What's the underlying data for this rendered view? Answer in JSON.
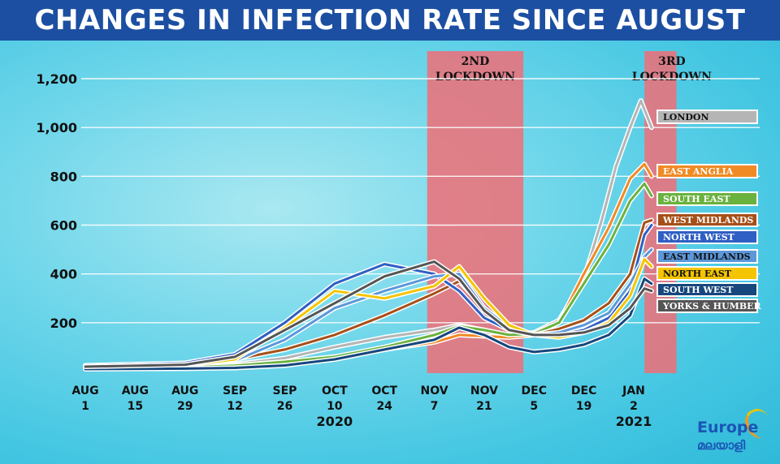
{
  "title": "CHANGES IN INFECTION RATE SINCE AUGUST",
  "colors": {
    "title_bg": "#1c4fa2",
    "shade": "#f06e77",
    "grid": "#ffffff"
  },
  "logo": {
    "word": "Europe",
    "sub": "മലയാളി",
    "icon": "swoosh-icon"
  },
  "chart_data": {
    "type": "line",
    "title": "CHANGES IN INFECTION RATE SINCE AUGUST",
    "xlabel": "",
    "ylabel": "",
    "x_start": "2020-08-01",
    "x_ticks": [
      {
        "date": "2020-08-01",
        "l1": "AUG",
        "l2": "1"
      },
      {
        "date": "2020-08-15",
        "l1": "AUG",
        "l2": "15"
      },
      {
        "date": "2020-08-29",
        "l1": "AUG",
        "l2": "29"
      },
      {
        "date": "2020-09-12",
        "l1": "SEP",
        "l2": "12"
      },
      {
        "date": "2020-09-26",
        "l1": "SEP",
        "l2": "26"
      },
      {
        "date": "2020-10-10",
        "l1": "OCT",
        "l2": "10"
      },
      {
        "date": "2020-10-24",
        "l1": "OCT",
        "l2": "24"
      },
      {
        "date": "2020-11-07",
        "l1": "NOV",
        "l2": "7"
      },
      {
        "date": "2020-11-21",
        "l1": "NOV",
        "l2": "21"
      },
      {
        "date": "2020-12-05",
        "l1": "DEC",
        "l2": "5"
      },
      {
        "date": "2020-12-19",
        "l1": "DEC",
        "l2": "19"
      },
      {
        "date": "2021-01-02",
        "l1": "JAN",
        "l2": "2"
      }
    ],
    "year_labels": [
      {
        "text": "2020",
        "date": "2020-10-10"
      },
      {
        "text": "2021",
        "date": "2021-01-02"
      }
    ],
    "y_ticks": [
      200,
      400,
      600,
      800,
      1000,
      1200
    ],
    "y_tick_labels": [
      "200",
      "400",
      "600",
      "800",
      "1,000",
      "1,200"
    ],
    "ylim": [
      0,
      1200
    ],
    "grid": true,
    "shaded_periods": [
      {
        "label1": "2ND",
        "label2": "LOCKDOWN",
        "start": "2020-11-05",
        "end": "2020-12-02"
      },
      {
        "label1": "3RD",
        "label2": "LOCKDOWN",
        "start": "2021-01-05",
        "end": "2021-01-14"
      }
    ],
    "series": [
      {
        "name": "LONDON",
        "color": "#b5b5b5",
        "text_color": "#111111",
        "points": [
          [
            "2020-08-01",
            20
          ],
          [
            "2020-08-29",
            22
          ],
          [
            "2020-09-12",
            30
          ],
          [
            "2020-09-26",
            55
          ],
          [
            "2020-10-10",
            100
          ],
          [
            "2020-10-24",
            140
          ],
          [
            "2020-11-07",
            170
          ],
          [
            "2020-11-14",
            190
          ],
          [
            "2020-11-21",
            170
          ],
          [
            "2020-11-28",
            150
          ],
          [
            "2020-12-05",
            160
          ],
          [
            "2020-12-12",
            210
          ],
          [
            "2020-12-19",
            380
          ],
          [
            "2020-12-24",
            620
          ],
          [
            "2020-12-28",
            840
          ],
          [
            "2021-01-01",
            1000
          ],
          [
            "2021-01-04",
            1110
          ],
          [
            "2021-01-07",
            1000
          ]
        ]
      },
      {
        "name": "EAST ANGLIA",
        "color": "#f08a24",
        "text_color": "#ffffff",
        "points": [
          [
            "2020-08-01",
            15
          ],
          [
            "2020-08-29",
            18
          ],
          [
            "2020-09-12",
            25
          ],
          [
            "2020-09-26",
            40
          ],
          [
            "2020-10-10",
            60
          ],
          [
            "2020-10-24",
            90
          ],
          [
            "2020-11-07",
            120
          ],
          [
            "2020-11-14",
            150
          ],
          [
            "2020-11-21",
            145
          ],
          [
            "2020-11-28",
            140
          ],
          [
            "2020-12-05",
            150
          ],
          [
            "2020-12-12",
            200
          ],
          [
            "2020-12-19",
            400
          ],
          [
            "2020-12-26",
            590
          ],
          [
            "2021-01-01",
            790
          ],
          [
            "2021-01-05",
            850
          ],
          [
            "2021-01-07",
            800
          ]
        ]
      },
      {
        "name": "SOUTH EAST",
        "color": "#6ab23e",
        "text_color": "#ffffff",
        "points": [
          [
            "2020-08-01",
            14
          ],
          [
            "2020-08-29",
            17
          ],
          [
            "2020-09-12",
            24
          ],
          [
            "2020-09-26",
            40
          ],
          [
            "2020-10-10",
            60
          ],
          [
            "2020-10-24",
            100
          ],
          [
            "2020-11-07",
            150
          ],
          [
            "2020-11-14",
            185
          ],
          [
            "2020-11-21",
            170
          ],
          [
            "2020-11-28",
            150
          ],
          [
            "2020-12-05",
            155
          ],
          [
            "2020-12-12",
            200
          ],
          [
            "2020-12-19",
            360
          ],
          [
            "2020-12-26",
            520
          ],
          [
            "2021-01-01",
            700
          ],
          [
            "2021-01-05",
            770
          ],
          [
            "2021-01-07",
            720
          ]
        ]
      },
      {
        "name": "WEST MIDLANDS",
        "color": "#a64f18",
        "text_color": "#ffffff",
        "points": [
          [
            "2020-08-01",
            22
          ],
          [
            "2020-08-29",
            30
          ],
          [
            "2020-09-12",
            50
          ],
          [
            "2020-09-26",
            90
          ],
          [
            "2020-10-10",
            150
          ],
          [
            "2020-10-24",
            230
          ],
          [
            "2020-11-07",
            320
          ],
          [
            "2020-11-14",
            370
          ],
          [
            "2020-11-21",
            260
          ],
          [
            "2020-11-28",
            180
          ],
          [
            "2020-12-05",
            150
          ],
          [
            "2020-12-12",
            175
          ],
          [
            "2020-12-19",
            210
          ],
          [
            "2020-12-26",
            280
          ],
          [
            "2021-01-01",
            400
          ],
          [
            "2021-01-05",
            610
          ],
          [
            "2021-01-07",
            620
          ]
        ]
      },
      {
        "name": "NORTH WEST",
        "color": "#2f5fc4",
        "text_color": "#ffffff",
        "points": [
          [
            "2020-08-01",
            25
          ],
          [
            "2020-08-29",
            35
          ],
          [
            "2020-09-12",
            70
          ],
          [
            "2020-09-26",
            200
          ],
          [
            "2020-10-10",
            360
          ],
          [
            "2020-10-24",
            440
          ],
          [
            "2020-11-07",
            400
          ],
          [
            "2020-11-14",
            330
          ],
          [
            "2020-11-21",
            220
          ],
          [
            "2020-11-28",
            170
          ],
          [
            "2020-12-05",
            150
          ],
          [
            "2020-12-12",
            150
          ],
          [
            "2020-12-19",
            170
          ],
          [
            "2020-12-26",
            220
          ],
          [
            "2021-01-01",
            330
          ],
          [
            "2021-01-05",
            560
          ],
          [
            "2021-01-07",
            600
          ]
        ]
      },
      {
        "name": "EAST MIDLANDS",
        "color": "#5b97d9",
        "text_color": "#111111",
        "points": [
          [
            "2020-08-01",
            20
          ],
          [
            "2020-08-29",
            28
          ],
          [
            "2020-09-12",
            45
          ],
          [
            "2020-09-26",
            130
          ],
          [
            "2020-10-10",
            260
          ],
          [
            "2020-10-24",
            330
          ],
          [
            "2020-11-07",
            390
          ],
          [
            "2020-11-14",
            400
          ],
          [
            "2020-11-21",
            260
          ],
          [
            "2020-11-28",
            180
          ],
          [
            "2020-12-05",
            150
          ],
          [
            "2020-12-12",
            160
          ],
          [
            "2020-12-19",
            190
          ],
          [
            "2020-12-26",
            240
          ],
          [
            "2021-01-01",
            360
          ],
          [
            "2021-01-05",
            470
          ],
          [
            "2021-01-07",
            500
          ]
        ]
      },
      {
        "name": "NORTH EAST",
        "color": "#f5c400",
        "text_color": "#111111",
        "points": [
          [
            "2020-08-01",
            18
          ],
          [
            "2020-08-29",
            25
          ],
          [
            "2020-09-12",
            50
          ],
          [
            "2020-09-26",
            180
          ],
          [
            "2020-10-10",
            330
          ],
          [
            "2020-10-24",
            300
          ],
          [
            "2020-11-07",
            350
          ],
          [
            "2020-11-14",
            430
          ],
          [
            "2020-11-21",
            300
          ],
          [
            "2020-11-28",
            190
          ],
          [
            "2020-12-05",
            150
          ],
          [
            "2020-12-12",
            140
          ],
          [
            "2020-12-19",
            160
          ],
          [
            "2020-12-26",
            200
          ],
          [
            "2021-01-01",
            310
          ],
          [
            "2021-01-05",
            460
          ],
          [
            "2021-01-07",
            430
          ]
        ]
      },
      {
        "name": "SOUTH WEST",
        "color": "#16477d",
        "text_color": "#ffffff",
        "points": [
          [
            "2020-08-01",
            10
          ],
          [
            "2020-08-29",
            12
          ],
          [
            "2020-09-12",
            15
          ],
          [
            "2020-09-26",
            25
          ],
          [
            "2020-10-10",
            50
          ],
          [
            "2020-10-24",
            90
          ],
          [
            "2020-11-07",
            130
          ],
          [
            "2020-11-14",
            180
          ],
          [
            "2020-11-21",
            150
          ],
          [
            "2020-11-28",
            100
          ],
          [
            "2020-12-05",
            80
          ],
          [
            "2020-12-12",
            90
          ],
          [
            "2020-12-19",
            110
          ],
          [
            "2020-12-26",
            150
          ],
          [
            "2021-01-01",
            230
          ],
          [
            "2021-01-05",
            380
          ],
          [
            "2021-01-07",
            360
          ]
        ]
      },
      {
        "name": "YORKS & HUMBER",
        "color": "#555555",
        "text_color": "#ffffff",
        "points": [
          [
            "2020-08-01",
            20
          ],
          [
            "2020-08-29",
            28
          ],
          [
            "2020-09-12",
            60
          ],
          [
            "2020-09-26",
            170
          ],
          [
            "2020-10-10",
            280
          ],
          [
            "2020-10-24",
            390
          ],
          [
            "2020-11-07",
            450
          ],
          [
            "2020-11-14",
            380
          ],
          [
            "2020-11-21",
            250
          ],
          [
            "2020-11-28",
            170
          ],
          [
            "2020-12-05",
            150
          ],
          [
            "2020-12-12",
            150
          ],
          [
            "2020-12-19",
            160
          ],
          [
            "2020-12-26",
            190
          ],
          [
            "2021-01-01",
            260
          ],
          [
            "2021-01-05",
            340
          ],
          [
            "2021-01-07",
            330
          ]
        ]
      }
    ]
  }
}
